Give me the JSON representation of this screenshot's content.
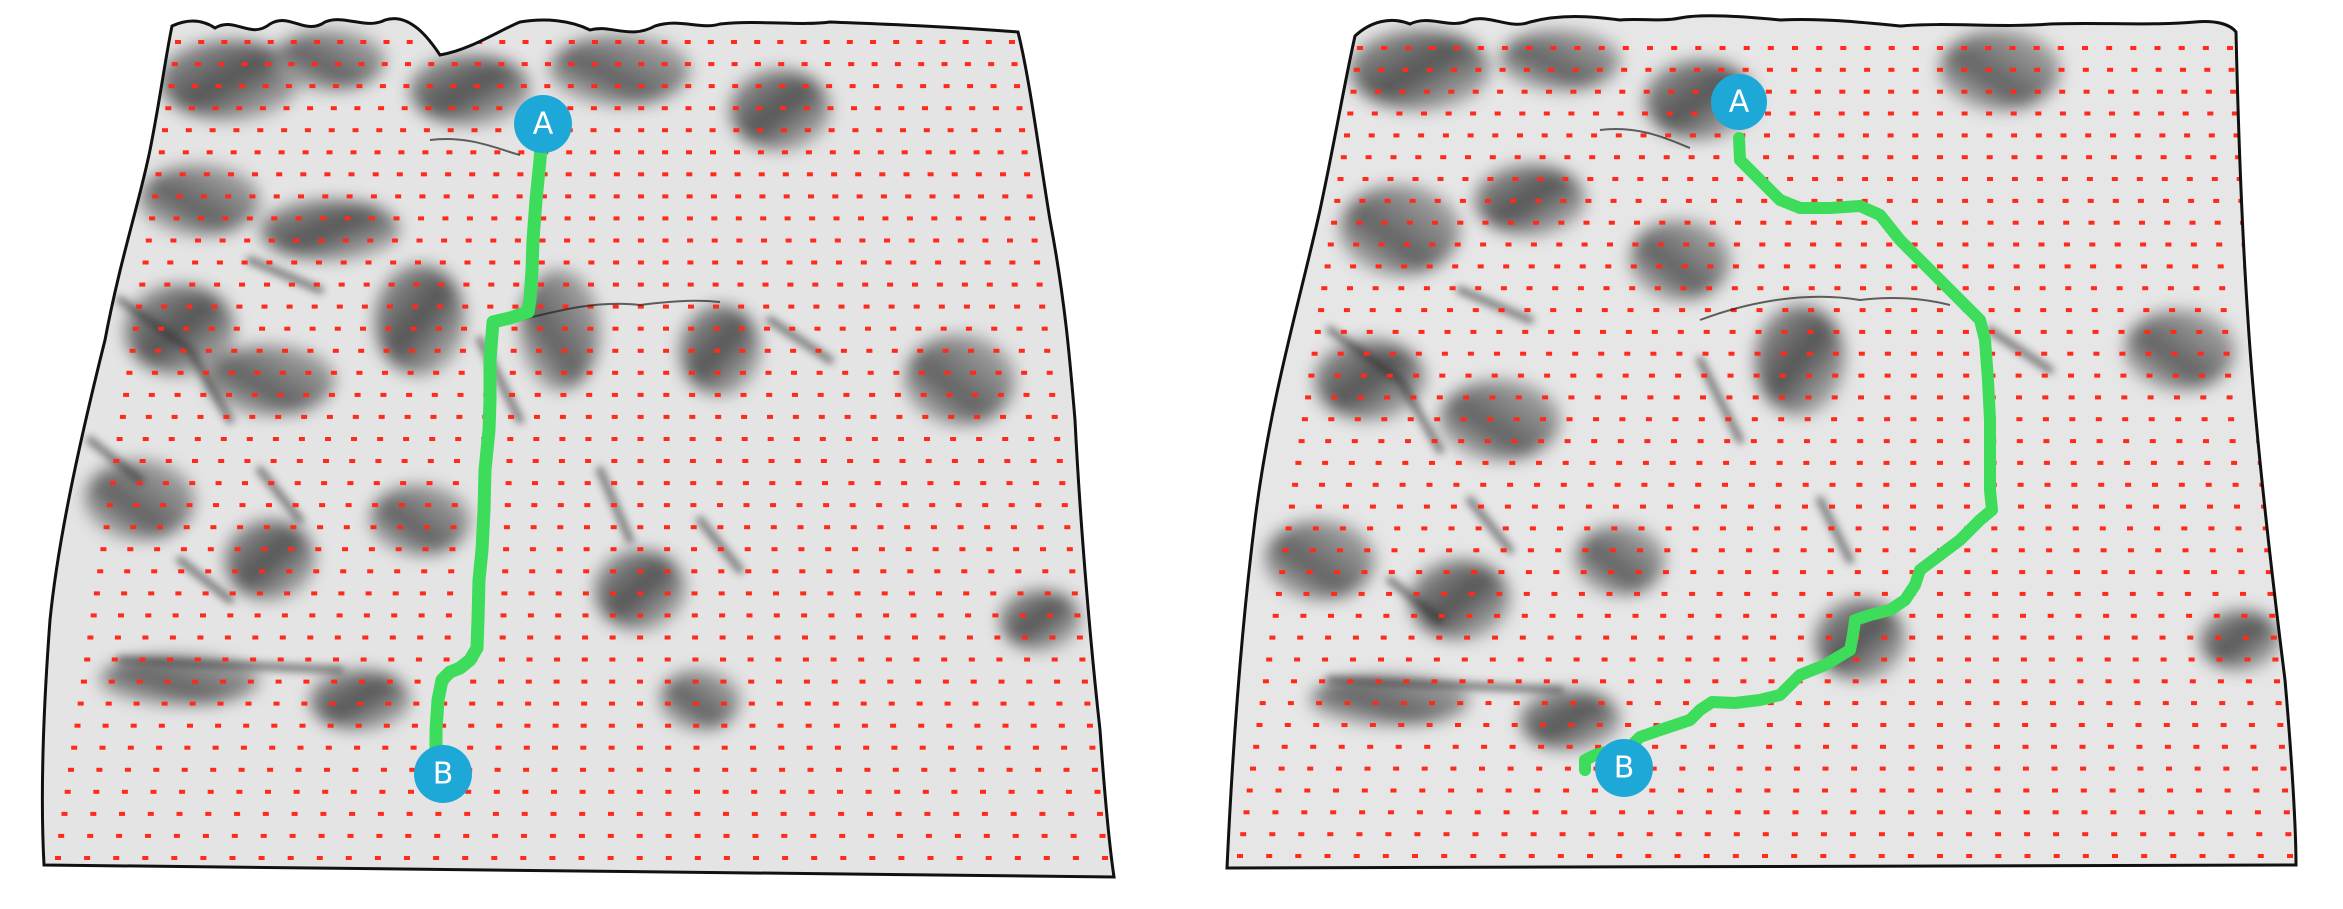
{
  "panels": [
    {
      "id": "left",
      "start_label": "A",
      "end_label": "B"
    },
    {
      "id": "right",
      "start_label": "A",
      "end_label": "B"
    }
  ],
  "colors": {
    "terrain_light": "#e6e6e6",
    "terrain_dark": "#2f2f2f",
    "outline": "#111111",
    "grid_dot": "#ff2a1a",
    "path": "#3ddc5a",
    "marker_fill": "#1ea8d8",
    "marker_text": "#ffffff"
  }
}
